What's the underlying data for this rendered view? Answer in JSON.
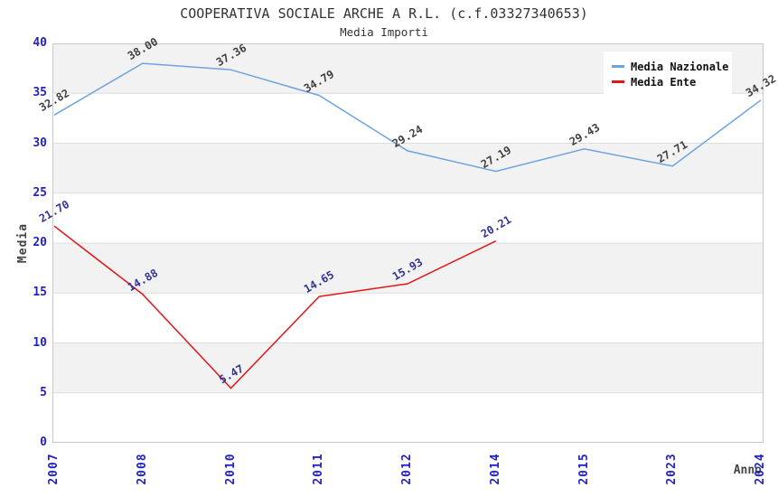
{
  "chart_data": {
    "type": "line",
    "title": "COOPERATIVA SOCIALE ARCHE A R.L. (c.f.03327340653)",
    "subtitle": "Media Importi",
    "xlabel": "Anno",
    "ylabel": "Media",
    "ylim": [
      0,
      40
    ],
    "ytick_step": 5,
    "grid": true,
    "legend_position": "top-right",
    "categories": [
      "2007",
      "2008",
      "2010",
      "2011",
      "2012",
      "2014",
      "2015",
      "2023",
      "2024"
    ],
    "series": [
      {
        "name": "Media Nazionale",
        "color": "#6CA4E0",
        "label_color": "#404040",
        "values": [
          32.82,
          38.0,
          37.36,
          34.79,
          29.24,
          27.19,
          29.43,
          27.71,
          34.32
        ]
      },
      {
        "name": "Media Ente",
        "color": "#E51616",
        "label_color": "#333399",
        "values": [
          21.7,
          14.88,
          5.47,
          14.65,
          15.93,
          20.21,
          null,
          null,
          null
        ]
      }
    ],
    "style": {
      "band_colors": [
        "#F2F2F2",
        "#FFFFFF"
      ],
      "gridline_color": "#DEDEDE",
      "plot_border_color": "#C9C9C9",
      "tick_label_color": "#2222CC",
      "title_color": "#333333",
      "axis_title_color": "#444444"
    }
  }
}
